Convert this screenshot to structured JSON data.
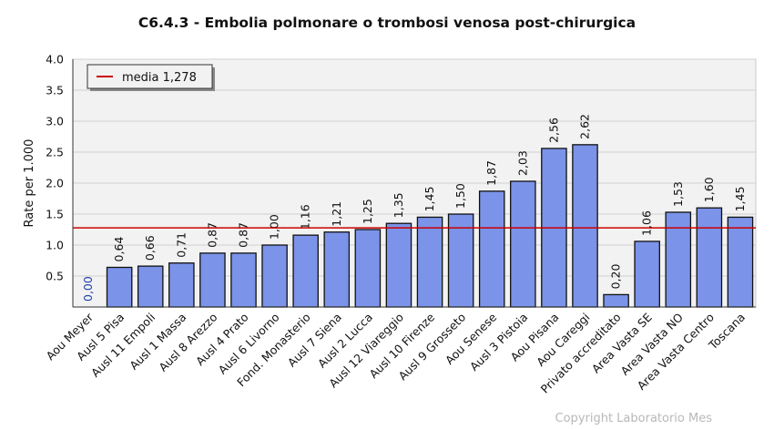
{
  "chart_data": {
    "type": "bar",
    "title": "C6.4.3 - Embolia polmonare o trombosi venosa post-chirurgica",
    "xlabel": "",
    "ylabel": "Rate per 1.000",
    "ylim": [
      0,
      4.0
    ],
    "yticks": [
      "0.5",
      "1.0",
      "1.5",
      "2.0",
      "2.5",
      "3.0",
      "3.5",
      "4.0"
    ],
    "grid": true,
    "legend_position": "top-left",
    "categories": [
      "Aou Meyer",
      "Ausl 5 Pisa",
      "Ausl 11 Empoli",
      "Ausl 1 Massa",
      "Ausl 8 Arezzo",
      "Ausl 4 Prato",
      "Ausl 6 Livorno",
      "Fond. Monasterio",
      "Ausl 7 Siena",
      "Ausl 2 Lucca",
      "Ausl 12 Viareggio",
      "Ausl 10 Firenze",
      "Ausl 9 Grosseto",
      "Aou Senese",
      "Ausl 3 Pistoia",
      "Aou Pisana",
      "Aou Careggi",
      "Privato accreditato",
      "Area Vasta SE",
      "Area Vasta NO",
      "Area Vasta Centro",
      "Toscana"
    ],
    "values": [
      0.0,
      0.64,
      0.66,
      0.71,
      0.87,
      0.87,
      1.0,
      1.16,
      1.21,
      1.25,
      1.35,
      1.45,
      1.5,
      1.87,
      2.03,
      2.56,
      2.62,
      0.2,
      1.06,
      1.53,
      1.6,
      1.45
    ],
    "value_labels": [
      "0,00",
      "0,64",
      "0,66",
      "0,71",
      "0,87",
      "0,87",
      "1,00",
      "1,16",
      "1,21",
      "1,25",
      "1,35",
      "1,45",
      "1,50",
      "1,87",
      "2,03",
      "2,56",
      "2,62",
      "0,20",
      "1,06",
      "1,53",
      "1,60",
      "1,45"
    ],
    "reference_line": {
      "label": "media 1,278",
      "value": 1.278
    },
    "colors": {
      "bar": "#7b93e8",
      "bar_edge": "#111111",
      "reference": "#cc0000",
      "zero_label": "#1a3da6",
      "plot_bg": "#f2f2f2",
      "grid": "#d0d0d0"
    }
  },
  "footer": {
    "copyright": "Copyright Laboratorio Mes"
  }
}
